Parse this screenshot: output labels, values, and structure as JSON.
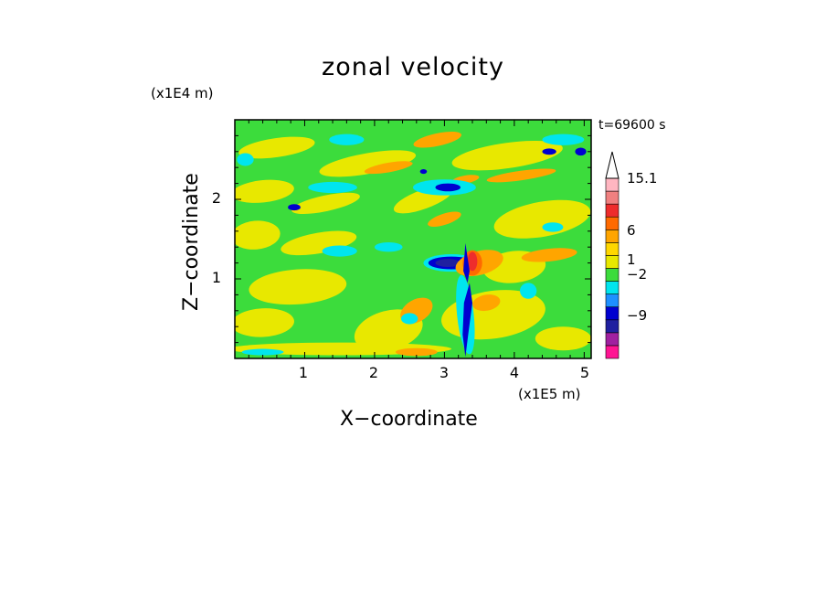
{
  "chart_data": {
    "type": "heatmap",
    "title": "zonal velocity",
    "xlabel": "X−coordinate",
    "ylabel": "Z−coordinate",
    "x_unit": "(x1E5 m)",
    "y_unit": "(x1E4 m)",
    "time_label": "t=69600 s",
    "xlim": [
      0,
      5.1
    ],
    "ylim": [
      0,
      3.0
    ],
    "x_ticks": [
      "1",
      "2",
      "3",
      "4",
      "5"
    ],
    "y_ticks": [
      "1",
      "2"
    ],
    "colorbar": {
      "labels": [
        "15.1",
        "6",
        "1",
        "−2",
        "−9"
      ],
      "colors": [
        "#ff1493",
        "#a020a0",
        "#2020a0",
        "#0000d0",
        "#1e90ff",
        "#00e5ee",
        "#3cdc3c",
        "#e8e800",
        "#ffd700",
        "#ffa500",
        "#ff6a00",
        "#ee2c2c",
        "#f08080",
        "#ffb6c1"
      ],
      "extends_top": true
    },
    "features": {
      "background": "#3cdc3c",
      "yellow_bands": "#e8e800",
      "orange_bands": "#ffa500",
      "cyan_patches": "#00e5ee",
      "strong_negative_core": {
        "x": 3.1,
        "z": 1.2,
        "value_range": [
          -9,
          -2
        ],
        "color": "#0000d0"
      },
      "strong_positive_core": {
        "x": 3.4,
        "z": 1.2,
        "value_range": [
          6,
          15.1
        ],
        "color": "#ee2c2c"
      },
      "descending_negative_stem": {
        "x": [
          3.25,
          3.35
        ],
        "z": [
          0,
          1.0
        ],
        "color": "#0000d0"
      }
    }
  }
}
